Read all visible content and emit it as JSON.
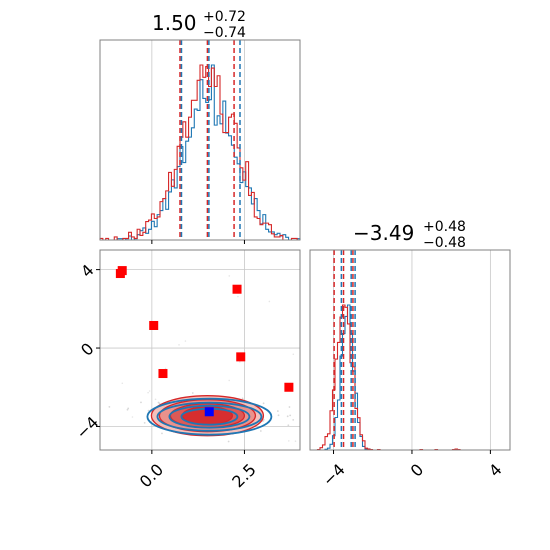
{
  "colors": {
    "red": "#d62728",
    "blue": "#1f77b4",
    "marker_red": "#ff0000",
    "marker_blue": "#0000ff",
    "grid": "#c8c8c8",
    "scatter_gray": "#d8d8d8"
  },
  "chart_data": [
    {
      "type": "histogram",
      "panel": "marginal-param-1",
      "title": {
        "value": "1.50",
        "upper": "+0.72",
        "lower": "−0.74"
      },
      "xlim": [
        -1.4,
        4.0
      ],
      "grid": true,
      "quantiles_red": [
        0.76,
        1.5,
        2.22
      ],
      "quantiles_blue": [
        0.8,
        1.54,
        2.38
      ]
    },
    {
      "type": "contour",
      "panel": "joint-param-1-param-2",
      "xlim": [
        -1.4,
        4.0
      ],
      "ylim": [
        -5.2,
        5.0
      ],
      "xticks": [
        "0.0",
        "2.5"
      ],
      "xtick_values": [
        0.0,
        2.5
      ],
      "yticks": [
        "4",
        "0",
        "−4"
      ],
      "ytick_values": [
        4,
        0,
        -4
      ],
      "grid": true,
      "center": [
        1.5,
        -3.45
      ],
      "red_markers": [
        [
          -0.8,
          3.95
        ],
        [
          -0.85,
          3.8
        ],
        [
          2.3,
          3.0
        ],
        [
          0.05,
          1.15
        ],
        [
          2.4,
          -0.45
        ],
        [
          0.3,
          -1.3
        ],
        [
          3.7,
          -2.0
        ]
      ],
      "blue_marker": [
        1.55,
        -3.25
      ]
    },
    {
      "type": "histogram",
      "panel": "marginal-param-2",
      "title": {
        "value": "−3.49",
        "upper": "+0.48",
        "lower": "−0.48"
      },
      "xlim": [
        -5.2,
        5.0
      ],
      "xticks": [
        "−4",
        "0",
        "4"
      ],
      "xtick_values": [
        -4,
        0,
        4
      ],
      "grid": true,
      "quantiles_red": [
        -3.97,
        -3.49,
        -3.01
      ],
      "quantiles_blue": [
        -3.6,
        -3.1,
        -2.9
      ]
    }
  ]
}
